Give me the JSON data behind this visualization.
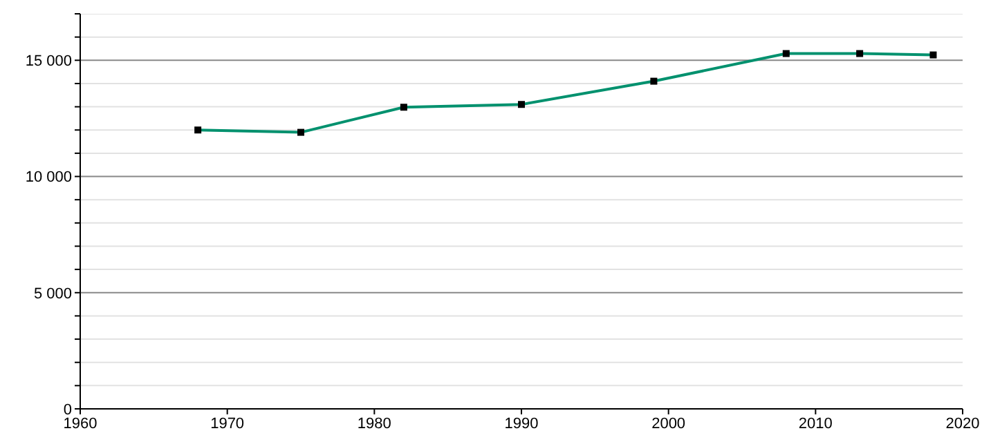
{
  "chart_data": {
    "type": "line",
    "x": [
      1968,
      1975,
      1982,
      1990,
      1999,
      2008,
      2013,
      2018
    ],
    "series": [
      {
        "color": "#00916e",
        "values": [
          12000,
          11900,
          12980,
          13100,
          14100,
          15290,
          15290,
          15230
        ]
      }
    ],
    "xlim": [
      1960,
      2020
    ],
    "xticks": [
      1960,
      1970,
      1980,
      1990,
      2000,
      2010,
      2020
    ],
    "ylim": [
      0,
      17000
    ],
    "yticks": [
      {
        "value": 0,
        "label": "0"
      },
      {
        "value": 1000,
        "label": null
      },
      {
        "value": 2000,
        "label": null
      },
      {
        "value": 3000,
        "label": null
      },
      {
        "value": 4000,
        "label": null
      },
      {
        "value": 5000,
        "label": "5 000"
      },
      {
        "value": 6000,
        "label": null
      },
      {
        "value": 7000,
        "label": null
      },
      {
        "value": 8000,
        "label": null
      },
      {
        "value": 9000,
        "label": null
      },
      {
        "value": 10000,
        "label": "10 000"
      },
      {
        "value": 11000,
        "label": null
      },
      {
        "value": 12000,
        "label": null
      },
      {
        "value": 13000,
        "label": null
      },
      {
        "value": 14000,
        "label": null
      },
      {
        "value": 15000,
        "label": "15 000"
      },
      {
        "value": 16000,
        "label": null
      },
      {
        "value": 17000,
        "label": null
      }
    ],
    "grid": "y",
    "marker": "square",
    "line_style": "solid",
    "legend": false
  }
}
